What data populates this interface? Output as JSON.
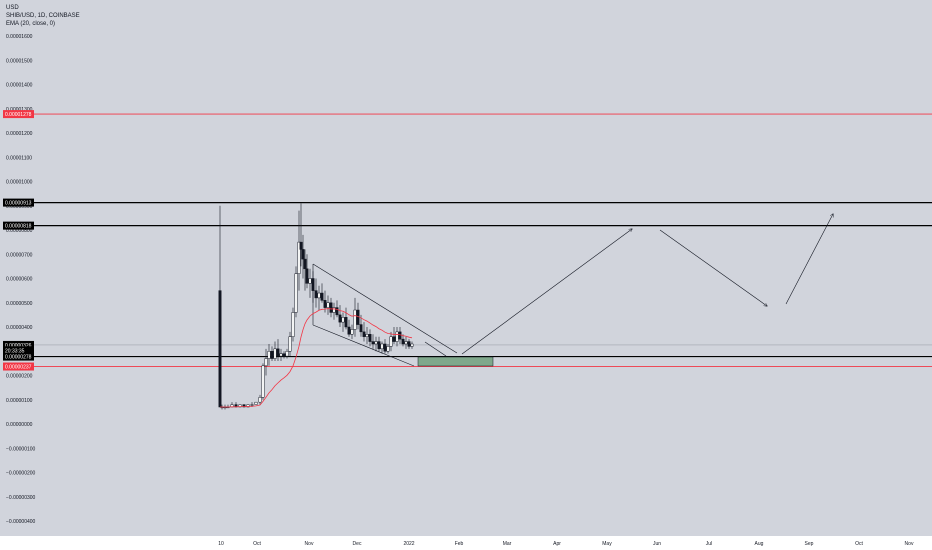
{
  "header": {
    "currency": "USD",
    "symbol": "SHIB/USD, 1D, COINBASE",
    "indicator": "EMA (20, close, 0)"
  },
  "colors": {
    "background": "#d1d4dc",
    "red_line": "#f23645",
    "black_line": "#000000",
    "ema": "#f23645",
    "zone_fill": "#7fa88b",
    "candle": "#131722"
  },
  "chart_data": {
    "type": "candlestick",
    "symbol": "SHIB/USD",
    "timeframe": "1D",
    "exchange": "COINBASE",
    "y_tick_labels": [
      "0.00001600",
      "0.00001500",
      "0.00001400",
      "0.00001300",
      "0.00001200",
      "0.00001100",
      "0.00001000",
      "0.00000900",
      "0.00000800",
      "0.00000700",
      "0.00000600",
      "0.00000500",
      "0.00000400",
      "0.00000300",
      "0.00000200",
      "0.00000100",
      "0.00000000",
      "−0.00000100",
      "−0.00000200",
      "−0.00000300",
      "−0.00000400"
    ],
    "y_tick_values": [
      1.6e-05,
      1.5e-05,
      1.4e-05,
      1.3e-05,
      1.2e-05,
      1.1e-05,
      1e-05,
      9e-06,
      8e-06,
      7e-06,
      6e-06,
      5e-06,
      4e-06,
      3e-06,
      2e-06,
      1e-06,
      0,
      -1e-06,
      -2e-06,
      -3e-06,
      -4e-06
    ],
    "x_tick_labels": [
      "10",
      "Oct",
      "Nov",
      "Dec",
      "2022",
      "Feb",
      "Mar",
      "Apr",
      "May",
      "Jun",
      "Jul",
      "Aug",
      "Sep",
      "Oct",
      "Nov"
    ],
    "ylim": [
      -4.3e-06,
      1.69e-05
    ],
    "price_badges": [
      {
        "label": "0.00001278",
        "value": 1.278e-05,
        "color": "#f23645"
      },
      {
        "label": "0.00000913",
        "value": 9.13e-06,
        "color": "#000000"
      },
      {
        "label": "0.00000818",
        "value": 8.18e-06,
        "color": "#000000"
      },
      {
        "label": "0.00000326",
        "value": 3.26e-06,
        "color": "#000000"
      },
      {
        "label": "20:33:35",
        "value": 3.04e-06,
        "color": "#000000"
      },
      {
        "label": "0.00000278",
        "value": 2.78e-06,
        "color": "#000000"
      },
      {
        "label": "0.00000237",
        "value": 2.37e-06,
        "color": "#f23645"
      }
    ],
    "horizontal_lines": [
      {
        "value": 1.278e-05,
        "color": "#f23645"
      },
      {
        "value": 9.13e-06,
        "color": "#000000"
      },
      {
        "value": 8.18e-06,
        "color": "#000000"
      },
      {
        "value": 2.78e-06,
        "color": "#000000"
      },
      {
        "value": 2.37e-06,
        "color": "#f23645"
      }
    ]
  }
}
